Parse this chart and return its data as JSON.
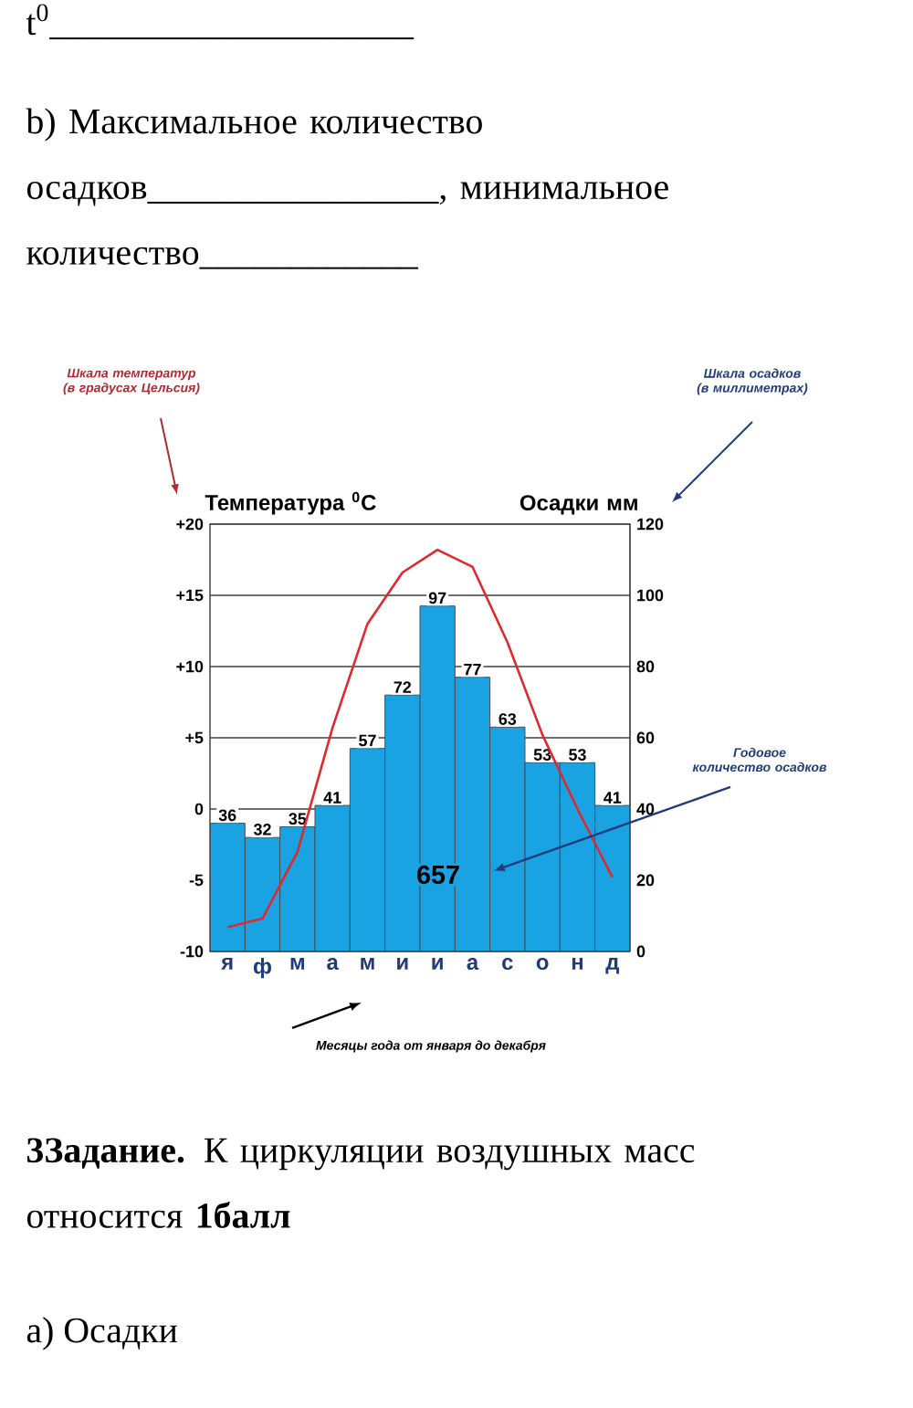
{
  "chart_data": {
    "type": "bar",
    "categories": [
      "я",
      "ф",
      "м",
      "а",
      "м",
      "и",
      "и",
      "а",
      "с",
      "о",
      "н",
      "д"
    ],
    "ylabel": "Температура $^{0}$C",
    "y2label": "Осадки мм",
    "ylim": [
      -10,
      20
    ],
    "yticks": [
      {
        "value": 20,
        "label": "+20"
      },
      {
        "value": 15,
        "label": "+15"
      },
      {
        "value": 10,
        "label": "+10"
      },
      {
        "value": 5,
        "label": "+5"
      },
      0,
      -5,
      -10
    ],
    "y2lim": [
      0,
      120
    ],
    "y2ticks": [
      0,
      20,
      40,
      60,
      80,
      100,
      120
    ],
    "grid": "y",
    "series": [
      {
        "axis": "y2",
        "color": "#1aa3e3",
        "values": [
          36,
          32,
          35,
          41,
          57,
          72,
          97,
          77,
          63,
          53,
          53,
          41
        ],
        "value_labels": [
          "36",
          "32",
          "35",
          "41",
          "57",
          "72",
          "97",
          "77",
          "63",
          "53",
          "53",
          "41"
        ]
      },
      {
        "type": "line",
        "axis": "y",
        "color": "#e0282e",
        "values": [
          -8.3,
          -7.7,
          -3,
          5.7,
          13,
          16.6,
          18.2,
          17,
          11.7,
          5.2,
          0,
          -4.8
        ]
      }
    ],
    "annotations": [
      "t$^{0}$____________________",
      "b) Максимальное количество осадков________________, минимальное количество____________",
      "Шкала температур (в градусах Цельсия)",
      "Шкала осадков (в миллиметрах)",
      "657",
      "Годовое количество осадков",
      "Месяцы года от января до декабря",
      "**3Задание.** К циркуляции воздушных масс относится **1балл**",
      "а) Осадки"
    ]
  }
}
